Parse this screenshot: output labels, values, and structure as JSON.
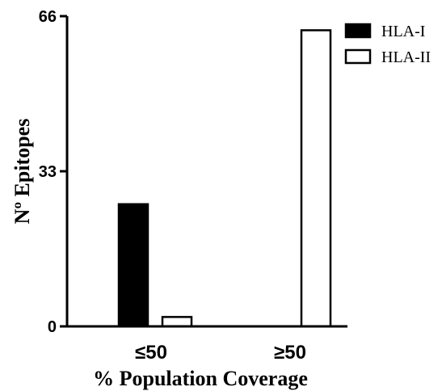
{
  "chart_data": {
    "type": "bar",
    "title": "",
    "xlabel": "% Population Coverage",
    "ylabel": "Nº Epitopes",
    "categories": [
      "≤50",
      "≥50"
    ],
    "series": [
      {
        "name": "HLA-I",
        "values": [
          26,
          0
        ],
        "color": "#000000"
      },
      {
        "name": "HLA-II",
        "values": [
          2,
          63
        ],
        "color": "#ffffff"
      }
    ],
    "ylim": [
      0,
      66
    ],
    "yticks": [
      0,
      33,
      66
    ],
    "grid": false,
    "legend": "top-right"
  }
}
